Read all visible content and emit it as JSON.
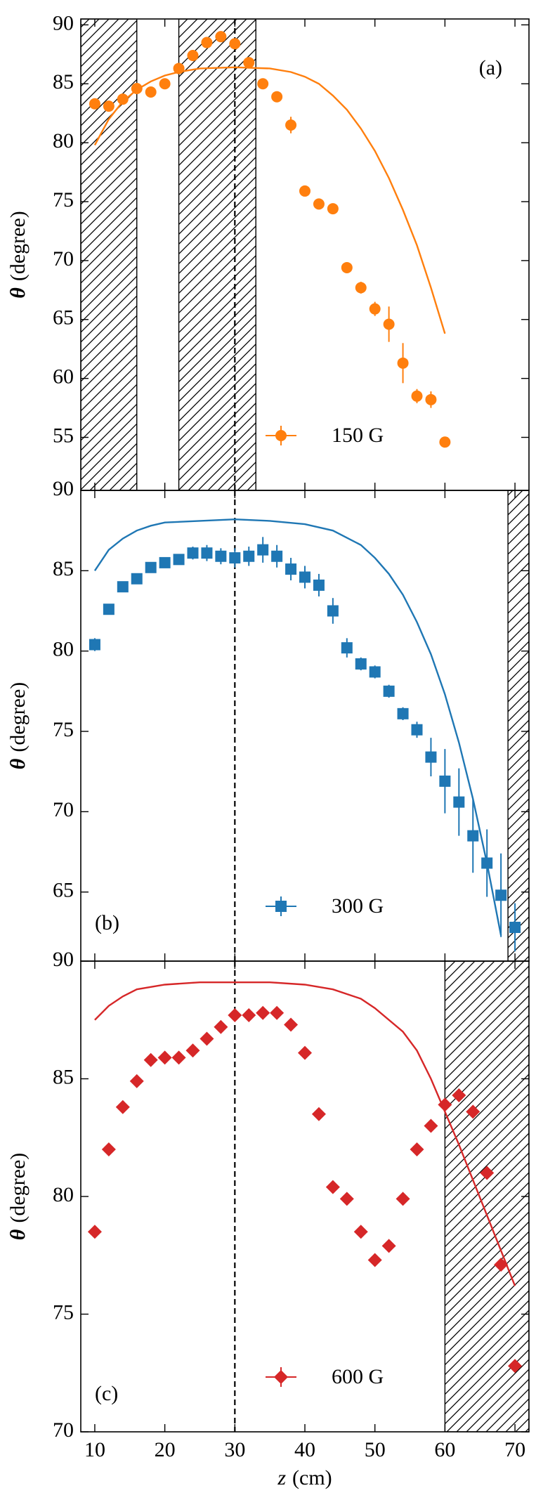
{
  "chart_data": [
    {
      "type": "scatter",
      "label": "(a)",
      "label_corner": "upper right",
      "legend": "lower center",
      "xlim": [
        8,
        72
      ],
      "xticks": [
        10,
        20,
        30,
        40,
        50,
        60,
        70
      ],
      "ylim": [
        50.5,
        90.5
      ],
      "yticks": [
        55,
        60,
        65,
        70,
        75,
        80,
        85,
        90
      ],
      "y_label": {
        "symbol": "θ",
        "unit": "(degree)"
      },
      "hatch": [
        [
          8,
          16
        ],
        [
          22,
          33
        ]
      ],
      "vline": 30,
      "series": [
        {
          "name": "150 G",
          "color": "#ff7f0e",
          "marker": "circle",
          "x": [
            10,
            12,
            14,
            16,
            18,
            20,
            22,
            24,
            26,
            28,
            30,
            32,
            34,
            36,
            38,
            40,
            42,
            44,
            46,
            48,
            50,
            52,
            54,
            56,
            58,
            60
          ],
          "values": [
            83.3,
            83.1,
            83.7,
            84.6,
            84.3,
            85.0,
            86.3,
            87.4,
            88.5,
            89.0,
            88.4,
            86.8,
            85.0,
            83.9,
            81.5,
            75.9,
            74.8,
            74.4,
            69.4,
            67.7,
            65.9,
            64.6,
            61.3,
            58.5,
            58.2,
            54.6
          ],
          "errors": [
            0.3,
            0.3,
            0.3,
            0.3,
            0.3,
            0.3,
            0.3,
            0.3,
            0.3,
            0.3,
            0.3,
            0.3,
            0.3,
            0.3,
            0.7,
            0.4,
            0.3,
            0.3,
            0.3,
            0.5,
            0.6,
            1.5,
            1.7,
            0.6,
            0.7,
            0.4
          ]
        }
      ],
      "fit": {
        "color": "#ff7f0e",
        "x": [
          10,
          12,
          14,
          16,
          18,
          20,
          22,
          25,
          30,
          35,
          38,
          40,
          42,
          44,
          46,
          48,
          50,
          52,
          54,
          56,
          58,
          60
        ],
        "values": [
          79.8,
          82.0,
          83.5,
          84.5,
          85.2,
          85.7,
          86.0,
          86.3,
          86.4,
          86.3,
          86.0,
          85.6,
          85.0,
          84.0,
          82.8,
          81.2,
          79.3,
          77.0,
          74.3,
          71.3,
          67.7,
          63.8
        ]
      }
    },
    {
      "type": "scatter",
      "label": "(b)",
      "label_corner": "lower left",
      "legend": "lower center",
      "xlim": [
        8,
        72
      ],
      "xticks": [
        10,
        20,
        30,
        40,
        50,
        60,
        70
      ],
      "ylim": [
        60.7,
        90
      ],
      "yticks": [
        65,
        70,
        75,
        80,
        85,
        90
      ],
      "y_label": {
        "symbol": "θ",
        "unit": "(degree)"
      },
      "hatch": [
        [
          69,
          72
        ]
      ],
      "vline": 30,
      "series": [
        {
          "name": "300 G",
          "color": "#1f77b4",
          "marker": "square",
          "x": [
            10,
            12,
            14,
            16,
            18,
            20,
            22,
            24,
            26,
            28,
            30,
            32,
            34,
            36,
            38,
            40,
            42,
            44,
            46,
            48,
            50,
            52,
            54,
            56,
            58,
            60,
            62,
            64,
            66,
            68,
            70
          ],
          "values": [
            80.4,
            82.6,
            84.0,
            84.5,
            85.2,
            85.5,
            85.7,
            86.1,
            86.1,
            85.9,
            85.8,
            85.9,
            86.3,
            85.9,
            85.1,
            84.6,
            84.1,
            82.5,
            80.2,
            79.2,
            78.7,
            77.5,
            76.1,
            75.1,
            73.4,
            71.9,
            70.6,
            68.5,
            66.8,
            64.8,
            62.8
          ],
          "errors": [
            0.4,
            0.3,
            0.3,
            0.3,
            0.3,
            0.3,
            0.3,
            0.4,
            0.5,
            0.5,
            0.6,
            0.6,
            0.8,
            0.7,
            0.7,
            0.7,
            0.7,
            0.8,
            0.6,
            0.4,
            0.4,
            0.4,
            0.4,
            0.5,
            1.2,
            2.0,
            2.1,
            2.3,
            2.1,
            2.6,
            1.5
          ]
        }
      ],
      "fit": {
        "color": "#1f77b4",
        "x": [
          10,
          12,
          14,
          16,
          18,
          20,
          25,
          30,
          35,
          40,
          44,
          48,
          50,
          52,
          54,
          56,
          58,
          60,
          62,
          64,
          66,
          68
        ],
        "values": [
          85.0,
          86.3,
          87.0,
          87.5,
          87.8,
          88.0,
          88.1,
          88.2,
          88.1,
          87.9,
          87.5,
          86.6,
          85.8,
          84.8,
          83.5,
          81.8,
          79.8,
          77.3,
          74.3,
          70.8,
          66.8,
          62.3
        ]
      }
    },
    {
      "type": "scatter",
      "label": "(c)",
      "label_corner": "lower left",
      "legend": "lower center",
      "xlim": [
        8,
        72
      ],
      "xticks": [
        10,
        20,
        30,
        40,
        50,
        60,
        70
      ],
      "ylim": [
        70,
        90
      ],
      "yticks": [
        70,
        75,
        80,
        85,
        90
      ],
      "y_label": {
        "symbol": "θ",
        "unit": "(degree)"
      },
      "x_label": {
        "symbol": "z",
        "unit": "(cm)"
      },
      "hatch": [
        [
          60,
          72
        ]
      ],
      "vline": 30,
      "series": [
        {
          "name": "600 G",
          "color": "#d62728",
          "marker": "diamond",
          "x": [
            10,
            12,
            14,
            16,
            18,
            20,
            22,
            24,
            26,
            28,
            30,
            32,
            34,
            36,
            38,
            40,
            42,
            44,
            46,
            48,
            50,
            52,
            54,
            56,
            58,
            60,
            62,
            64,
            66,
            68,
            70
          ],
          "values": [
            78.5,
            82.0,
            83.8,
            84.9,
            85.8,
            85.9,
            85.9,
            86.2,
            86.7,
            87.2,
            87.7,
            87.7,
            87.8,
            87.8,
            87.3,
            86.1,
            83.5,
            80.4,
            79.9,
            78.5,
            77.3,
            77.9,
            79.9,
            82.0,
            83.0,
            83.9,
            84.3,
            83.6,
            81.0,
            77.1,
            72.8
          ]
        }
      ],
      "fit": {
        "color": "#d62728",
        "x": [
          10,
          12,
          14,
          16,
          20,
          25,
          30,
          35,
          40,
          44,
          48,
          50,
          54,
          56,
          58,
          60,
          62,
          64,
          66,
          68,
          70
        ],
        "values": [
          87.5,
          88.1,
          88.5,
          88.8,
          89.0,
          89.1,
          89.1,
          89.1,
          89.0,
          88.8,
          88.4,
          88.0,
          87.0,
          86.2,
          85.0,
          83.6,
          82.2,
          80.7,
          79.2,
          77.7,
          76.2
        ]
      }
    }
  ]
}
